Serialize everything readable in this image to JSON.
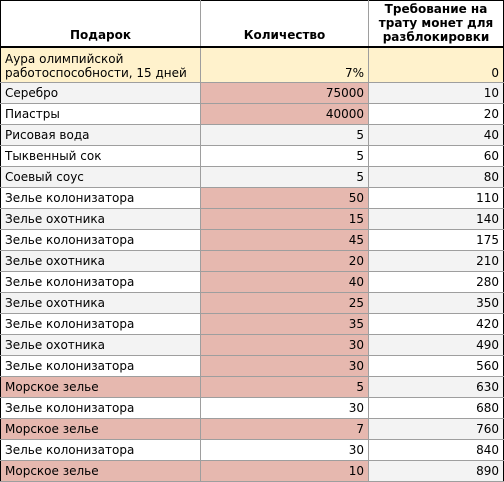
{
  "headers": {
    "gift": "Подарок",
    "quantity": "Количество",
    "requirement": "Требование на трату монет для разблокировки"
  },
  "rows": [
    {
      "gift": "Аура олимпийской работоспособности, 15 дней",
      "quantity": "7%",
      "requirement": "0",
      "highlight": false
    },
    {
      "gift": "Серебро",
      "quantity": "75000",
      "requirement": "10",
      "highlight": true
    },
    {
      "gift": "Пиастры",
      "quantity": "40000",
      "requirement": "20",
      "highlight": true
    },
    {
      "gift": "Рисовая вода",
      "quantity": "5",
      "requirement": "40",
      "highlight": false
    },
    {
      "gift": "Тыквенный сок",
      "quantity": "5",
      "requirement": "60",
      "highlight": false
    },
    {
      "gift": "Соевый соус",
      "quantity": "5",
      "requirement": "80",
      "highlight": false
    },
    {
      "gift": "Зелье колонизатора",
      "quantity": "50",
      "requirement": "110",
      "highlight": true
    },
    {
      "gift": "Зелье охотника",
      "quantity": "15",
      "requirement": "140",
      "highlight": true
    },
    {
      "gift": "Зелье колонизатора",
      "quantity": "45",
      "requirement": "175",
      "highlight": true
    },
    {
      "gift": "Зелье охотника",
      "quantity": "20",
      "requirement": "210",
      "highlight": true
    },
    {
      "gift": "Зелье колонизатора",
      "quantity": "40",
      "requirement": "280",
      "highlight": true
    },
    {
      "gift": "Зелье охотника",
      "quantity": "25",
      "requirement": "350",
      "highlight": true
    },
    {
      "gift": "Зелье колонизатора",
      "quantity": "35",
      "requirement": "420",
      "highlight": true
    },
    {
      "gift": "Зелье охотника",
      "quantity": "30",
      "requirement": "490",
      "highlight": true
    },
    {
      "gift": "Зелье колонизатора",
      "quantity": "30",
      "requirement": "560",
      "highlight": true
    },
    {
      "gift": "Морское зелье",
      "quantity": "5",
      "requirement": "630",
      "highlight": true,
      "gift_highlight": true
    },
    {
      "gift": "Зелье колонизатора",
      "quantity": "30",
      "requirement": "680",
      "highlight": false
    },
    {
      "gift": "Морское зелье",
      "quantity": "7",
      "requirement": "760",
      "highlight": true,
      "gift_highlight": true
    },
    {
      "gift": "Зелье колонизатора",
      "quantity": "30",
      "requirement": "840",
      "highlight": false
    },
    {
      "gift": "Морское зелье",
      "quantity": "10",
      "requirement": "890",
      "highlight": true,
      "gift_highlight": true
    }
  ],
  "colors": {
    "header_first_row": "#fff2cc",
    "highlight": "#e6b8af",
    "stripe": "#f3f3f3"
  }
}
